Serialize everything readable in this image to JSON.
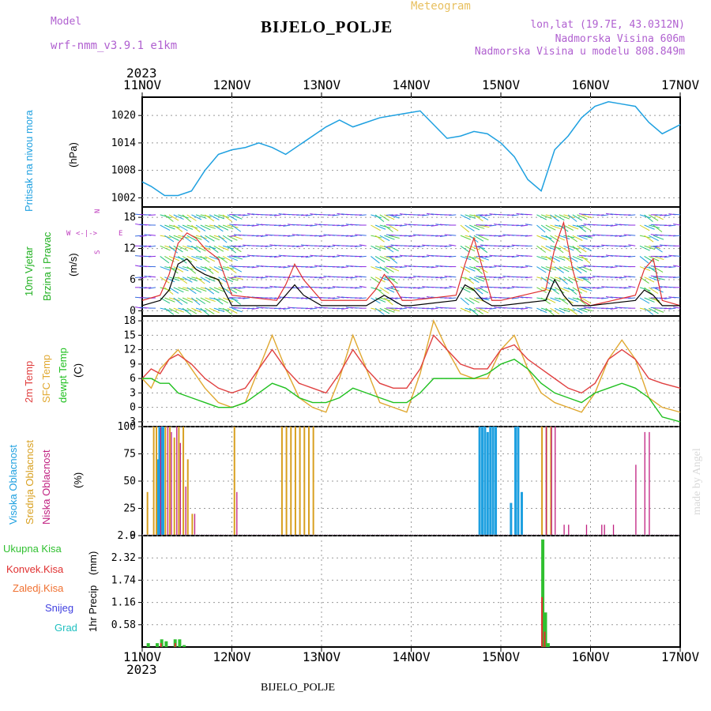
{
  "header": {
    "model_label": "Model",
    "model_name": "wrf-nmm_v3.9.1 e1km",
    "station": "BIJELO_POLJE",
    "product": "Meteogram",
    "coords": "lon,lat (19.7E, 43.0312N)",
    "elevation": "Nadmorska Visina 606m",
    "model_elevation": "Nadmorska Visina u modelu 808.849m",
    "year": "2023",
    "footer_station": "BIJELO_POLJE",
    "watermark": "made by Angel"
  },
  "colors": {
    "pressure": "#1ea0e0",
    "temp2m": "#e04040",
    "sfc": "#e0a830",
    "dewpt": "#20c020",
    "cloud_high": "#1ea0e0",
    "cloud_mid": "#d8a020",
    "cloud_low": "#c02080",
    "rain": "#30c030",
    "conv": "#e03030",
    "frz": "#f07030",
    "snow": "#4040e0",
    "hail": "#20c0c0",
    "wind_label": "#20b020",
    "wind_dir": "#c040c0",
    "wind_speed": "#000000",
    "wind_gust": "#e03030"
  },
  "chart_data": [
    {
      "type": "line",
      "panel": "pressure",
      "ylabel": "Pritisak na nivou mora",
      "unit": "(hPa)",
      "yticks": [
        1002,
        1008,
        1014,
        1020
      ],
      "ylim": [
        1000,
        1024
      ],
      "x_dates": [
        "11NOV",
        "12NOV",
        "13NOV",
        "14NOV",
        "15NOV",
        "16NOV",
        "17NOV"
      ],
      "series": [
        {
          "x": [
            0,
            0.1,
            0.25,
            0.4,
            0.55,
            0.7,
            0.85,
            1.0,
            1.15,
            1.3,
            1.45,
            1.6,
            1.75,
            1.9,
            2.05,
            2.2,
            2.35,
            2.5,
            2.65,
            2.8,
            2.95,
            3.1,
            3.25,
            3.4,
            3.55,
            3.7,
            3.85,
            4.0,
            4.15,
            4.3,
            4.45,
            4.6,
            4.75,
            4.9,
            5.05,
            5.2,
            5.35,
            5.5,
            5.65,
            5.8,
            5.95,
            6.0
          ],
          "values": [
            1005.5,
            1004.5,
            1002.5,
            1002.5,
            1003.5,
            1008,
            1011.5,
            1012.5,
            1013,
            1014,
            1013,
            1011.5,
            1013.5,
            1015.5,
            1017.5,
            1019,
            1017.5,
            1018.5,
            1019.5,
            1020,
            1020.5,
            1021,
            1018,
            1015,
            1015.5,
            1016.5,
            1016,
            1014,
            1011,
            1006,
            1003.5,
            1012.5,
            1015.5,
            1019.5,
            1022,
            1023,
            1022.5,
            1022,
            1018.5,
            1016,
            1017.5,
            1018
          ]
        }
      ]
    },
    {
      "type": "line",
      "panel": "wind",
      "ylabel": "10m Vjetar",
      "ylabel2": "Brzina i Pravac",
      "unit": "(m/s)",
      "direction_key": "N",
      "direction_key_w": "W",
      "direction_key_e": "E",
      "direction_key_s": "S",
      "yticks": [
        0,
        6,
        12,
        18
      ],
      "ylim": [
        -1,
        20
      ],
      "series": [
        {
          "name": "speed",
          "x": [
            0,
            0.2,
            0.3,
            0.4,
            0.5,
            0.6,
            0.7,
            0.85,
            1.0,
            1.5,
            1.6,
            1.7,
            1.8,
            2.0,
            2.5,
            2.6,
            2.7,
            2.8,
            2.9,
            3.0,
            3.5,
            3.6,
            3.7,
            3.8,
            3.9,
            4.0,
            4.5,
            4.6,
            4.7,
            4.8,
            4.9,
            5.0,
            5.5,
            5.6,
            5.7,
            5.8,
            6.0
          ],
          "values": [
            1,
            2,
            4,
            9,
            10,
            8,
            7,
            6,
            1,
            1,
            3,
            5,
            3,
            1,
            1,
            2,
            3,
            2,
            1,
            1,
            2,
            5,
            4,
            2,
            1,
            1,
            2,
            6,
            3,
            1,
            1,
            1,
            2,
            4,
            3,
            1,
            1
          ]
        },
        {
          "name": "gust",
          "x": [
            0,
            0.2,
            0.3,
            0.4,
            0.5,
            0.6,
            0.7,
            0.85,
            1.0,
            1.5,
            1.6,
            1.7,
            1.8,
            2.0,
            2.5,
            2.6,
            2.7,
            2.8,
            2.9,
            3.0,
            3.5,
            3.6,
            3.7,
            3.8,
            3.9,
            4.0,
            4.5,
            4.6,
            4.7,
            4.8,
            4.9,
            5.0,
            5.5,
            5.6,
            5.7,
            5.8,
            6.0
          ],
          "values": [
            2,
            3,
            7,
            13,
            15,
            14,
            12,
            10,
            3,
            2,
            5,
            9,
            6,
            2,
            2,
            4,
            7,
            5,
            2,
            2,
            3,
            9,
            14,
            8,
            2,
            2,
            4,
            12,
            17,
            8,
            2,
            1,
            3,
            8,
            10,
            2,
            1
          ]
        }
      ]
    },
    {
      "type": "line",
      "panel": "temperature",
      "ylabel_2m": "2m Temp",
      "ylabel_sfc": "SFC Temp",
      "ylabel_dew": "dewpt Temp",
      "unit": "(C)",
      "yticks": [
        -3,
        0,
        3,
        6,
        9,
        12,
        15,
        18
      ],
      "ylim": [
        -4,
        19
      ],
      "series": [
        {
          "name": "2m",
          "x": [
            0,
            0.1,
            0.2,
            0.3,
            0.4,
            0.55,
            0.7,
            0.85,
            1.0,
            1.15,
            1.3,
            1.45,
            1.6,
            1.75,
            1.9,
            2.05,
            2.2,
            2.35,
            2.5,
            2.65,
            2.8,
            2.95,
            3.1,
            3.25,
            3.4,
            3.55,
            3.7,
            3.85,
            4.0,
            4.15,
            4.3,
            4.45,
            4.6,
            4.75,
            4.9,
            5.05,
            5.2,
            5.35,
            5.5,
            5.65,
            5.8,
            6.0
          ],
          "values": [
            6,
            8,
            7,
            10,
            11,
            9,
            6,
            4,
            3,
            4,
            8,
            12,
            8,
            5,
            4,
            3,
            7,
            12,
            8,
            5,
            4,
            4,
            8,
            15,
            12,
            9,
            8,
            8,
            12,
            13,
            10,
            8,
            6,
            4,
            3,
            5,
            10,
            12,
            10,
            6,
            5,
            4
          ]
        },
        {
          "name": "sfc",
          "x": [
            0,
            0.1,
            0.2,
            0.3,
            0.4,
            0.55,
            0.7,
            0.85,
            1.0,
            1.15,
            1.3,
            1.45,
            1.6,
            1.75,
            1.9,
            2.05,
            2.2,
            2.35,
            2.5,
            2.65,
            2.8,
            2.95,
            3.1,
            3.25,
            3.4,
            3.55,
            3.7,
            3.85,
            4.0,
            4.15,
            4.3,
            4.45,
            4.6,
            4.75,
            4.9,
            5.05,
            5.2,
            5.35,
            5.5,
            5.65,
            5.8,
            6.0
          ],
          "values": [
            6,
            4,
            8,
            10,
            12,
            8,
            4,
            1,
            0,
            1,
            8,
            15,
            8,
            2,
            0,
            -1,
            6,
            15,
            8,
            1,
            0,
            -1,
            7,
            18,
            12,
            7,
            6,
            6,
            12,
            15,
            8,
            3,
            1,
            0,
            -1,
            3,
            10,
            14,
            10,
            2,
            0,
            -1
          ]
        },
        {
          "name": "dew",
          "x": [
            0,
            0.1,
            0.2,
            0.3,
            0.4,
            0.55,
            0.7,
            0.85,
            1.0,
            1.15,
            1.3,
            1.45,
            1.6,
            1.75,
            1.9,
            2.05,
            2.2,
            2.35,
            2.5,
            2.65,
            2.8,
            2.95,
            3.1,
            3.25,
            3.4,
            3.55,
            3.7,
            3.85,
            4.0,
            4.15,
            4.3,
            4.45,
            4.6,
            4.75,
            4.9,
            5.05,
            5.2,
            5.35,
            5.5,
            5.65,
            5.8,
            6.0
          ],
          "values": [
            6,
            6,
            5,
            5,
            3,
            2,
            1,
            0,
            0,
            1,
            3,
            5,
            4,
            2,
            1,
            1,
            2,
            4,
            3,
            2,
            1,
            1,
            3,
            6,
            6,
            6,
            6,
            7,
            9,
            10,
            8,
            5,
            3,
            2,
            1,
            3,
            4,
            5,
            4,
            2,
            -2,
            -3
          ]
        }
      ]
    },
    {
      "type": "bar",
      "panel": "clouds",
      "ylabel_high": "Visoka Oblacnost",
      "ylabel_mid": "Srednja Oblacnost",
      "ylabel_low": "Niska Oblacnost",
      "unit": "(%)",
      "yticks": [
        0,
        25,
        50,
        75,
        100
      ],
      "ylim": [
        0,
        100
      ],
      "series": [
        {
          "name": "high",
          "x": [
            0.16,
            0.18,
            0.2,
            0.22,
            3.75,
            3.78,
            3.81,
            3.84,
            3.87,
            3.9,
            3.93,
            4.1,
            4.15,
            4.18,
            4.22
          ],
          "values": [
            70,
            100,
            100,
            100,
            100,
            100,
            100,
            95,
            100,
            100,
            100,
            30,
            100,
            100,
            40
          ]
        },
        {
          "name": "mid",
          "x": [
            0.05,
            0.12,
            0.15,
            0.25,
            0.3,
            0.35,
            0.4,
            0.45,
            0.5,
            0.55,
            1.02,
            1.55,
            1.6,
            1.65,
            1.7,
            1.75,
            1.8,
            1.85,
            1.9,
            4.45,
            4.5,
            4.55
          ],
          "values": [
            40,
            100,
            100,
            100,
            100,
            90,
            100,
            100,
            70,
            20,
            100,
            100,
            100,
            100,
            100,
            100,
            100,
            100,
            100,
            100,
            100,
            100
          ]
        },
        {
          "name": "low",
          "x": [
            0.2,
            0.28,
            0.32,
            0.38,
            0.42,
            0.48,
            0.58,
            1.05,
            4.5,
            4.56,
            4.6,
            4.7,
            4.75,
            4.95,
            5.12,
            5.15,
            5.25,
            5.5,
            5.6,
            5.65
          ],
          "values": [
            100,
            100,
            95,
            100,
            85,
            45,
            20,
            40,
            100,
            100,
            100,
            10,
            10,
            10,
            10,
            10,
            10,
            65,
            95,
            95
          ]
        }
      ]
    },
    {
      "type": "bar",
      "panel": "precip",
      "ylabel": "1hr Precip",
      "unit": "(mm)",
      "legend": [
        "Ukupna Kisa",
        "Konvek.Kisa",
        "Zaledj.Kisa",
        "Snijeg",
        "Grad"
      ],
      "yticks": [
        0.58,
        1.16,
        1.74,
        2.32,
        2.9
      ],
      "ylim": [
        0,
        2.9
      ],
      "series": [
        {
          "name": "total",
          "x": [
            0.05,
            0.15,
            0.2,
            0.25,
            0.35,
            0.4,
            0.45,
            4.45,
            4.48,
            4.51
          ],
          "values": [
            0.1,
            0.1,
            0.2,
            0.15,
            0.2,
            0.2,
            0.05,
            2.8,
            0.9,
            0.1
          ]
        },
        {
          "name": "conv",
          "x": [
            0.2,
            0.36,
            4.45,
            4.48
          ],
          "values": [
            0.1,
            0.1,
            1.3,
            0.4
          ]
        }
      ]
    }
  ]
}
